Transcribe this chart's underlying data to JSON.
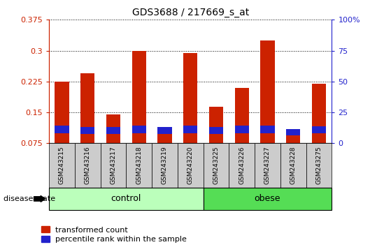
{
  "title": "GDS3688 / 217669_s_at",
  "samples": [
    "GSM243215",
    "GSM243216",
    "GSM243217",
    "GSM243218",
    "GSM243219",
    "GSM243220",
    "GSM243225",
    "GSM243226",
    "GSM243227",
    "GSM243228",
    "GSM243275"
  ],
  "red_values": [
    0.225,
    0.245,
    0.145,
    0.3,
    0.105,
    0.295,
    0.163,
    0.21,
    0.325,
    0.095,
    0.22
  ],
  "blue_height": [
    0.018,
    0.016,
    0.016,
    0.018,
    0.016,
    0.018,
    0.016,
    0.018,
    0.018,
    0.014,
    0.017
  ],
  "blue_bottom": [
    0.1,
    0.098,
    0.098,
    0.1,
    0.098,
    0.1,
    0.098,
    0.1,
    0.1,
    0.095,
    0.099
  ],
  "baseline": 0.075,
  "ylim": [
    0.075,
    0.375
  ],
  "ylim_right": [
    0,
    100
  ],
  "yticks_left": [
    0.075,
    0.15,
    0.225,
    0.3,
    0.375
  ],
  "yticks_right": [
    0,
    25,
    50,
    75,
    100
  ],
  "ytick_labels_left": [
    "0.075",
    "0.15",
    "0.225",
    "0.3",
    "0.375"
  ],
  "ytick_labels_right": [
    "0",
    "25",
    "50",
    "75",
    "100%"
  ],
  "bar_color_red": "#CC2200",
  "bar_color_blue": "#2222CC",
  "group_colors": {
    "control": "#BBFFBB",
    "obese": "#55DD55"
  },
  "legend_labels": [
    "transformed count",
    "percentile rank within the sample"
  ],
  "legend_colors": [
    "#CC2200",
    "#2222CC"
  ],
  "left_tick_color": "#CC2200",
  "right_tick_color": "#2222CC",
  "bar_width": 0.55,
  "figsize": [
    5.39,
    3.54
  ],
  "dpi": 100,
  "control_range": [
    0,
    5
  ],
  "obese_range": [
    6,
    10
  ]
}
